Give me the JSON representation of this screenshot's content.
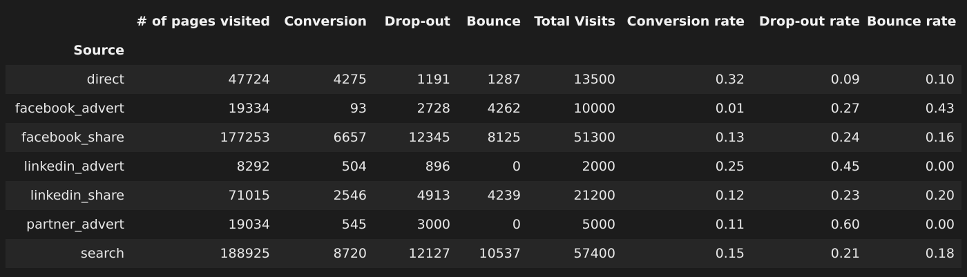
{
  "table": {
    "columns": [
      "# of pages visited",
      "Conversion",
      "Drop-out",
      "Bounce",
      "Total Visits",
      "Conversion rate",
      "Drop-out rate",
      "Bounce rate"
    ],
    "index_name": "Source",
    "rows": [
      {
        "source": "direct",
        "values": [
          "47724",
          "4275",
          "1191",
          "1287",
          "13500",
          "0.32",
          "0.09",
          "0.10"
        ]
      },
      {
        "source": "facebook_advert",
        "values": [
          "19334",
          "93",
          "2728",
          "4262",
          "10000",
          "0.01",
          "0.27",
          "0.43"
        ]
      },
      {
        "source": "facebook_share",
        "values": [
          "177253",
          "6657",
          "12345",
          "8125",
          "51300",
          "0.13",
          "0.24",
          "0.16"
        ]
      },
      {
        "source": "linkedin_advert",
        "values": [
          "8292",
          "504",
          "896",
          "0",
          "2000",
          "0.25",
          "0.45",
          "0.00"
        ]
      },
      {
        "source": "linkedin_share",
        "values": [
          "71015",
          "2546",
          "4913",
          "4239",
          "21200",
          "0.12",
          "0.23",
          "0.20"
        ]
      },
      {
        "source": "partner_advert",
        "values": [
          "19034",
          "545",
          "3000",
          "0",
          "5000",
          "0.11",
          "0.60",
          "0.00"
        ]
      },
      {
        "source": "search",
        "values": [
          "188925",
          "8720",
          "12127",
          "10537",
          "57400",
          "0.15",
          "0.21",
          "0.18"
        ]
      }
    ]
  }
}
